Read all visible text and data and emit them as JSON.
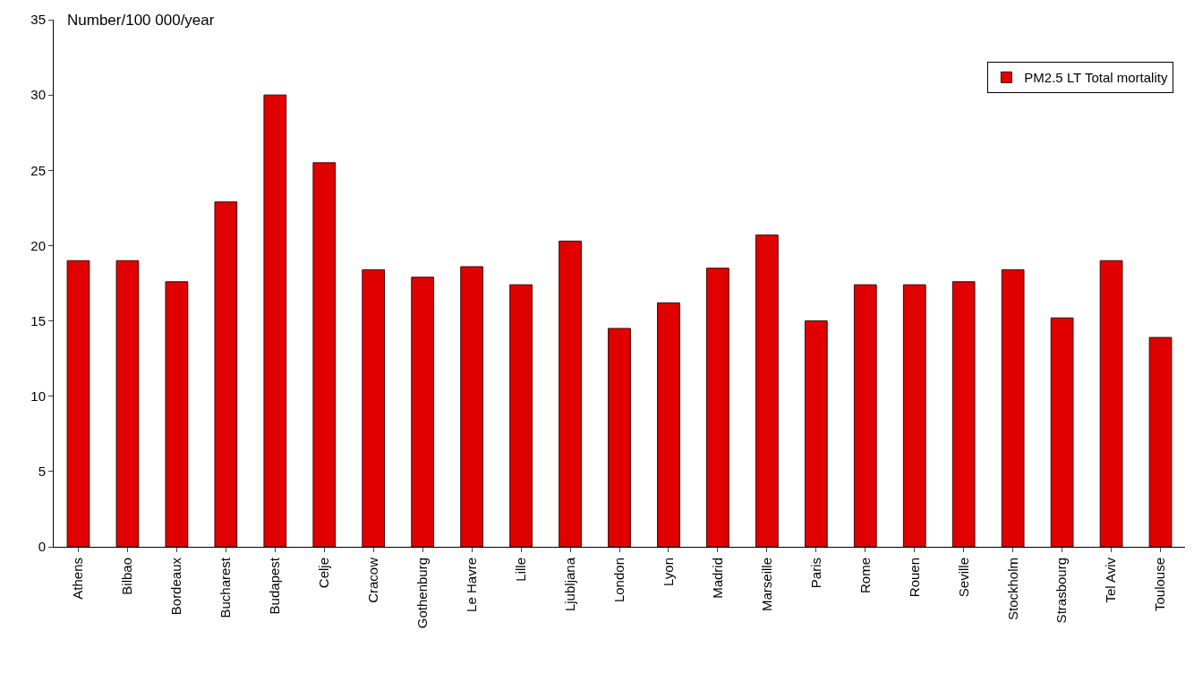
{
  "chart_data": {
    "type": "bar",
    "ylabel": "Number/100 000/year",
    "categories": [
      "Athens",
      "Bilbao",
      "Bordeaux",
      "Bucharest",
      "Budapest",
      "Celje",
      "Cracow",
      "Gothenburg",
      "Le Havre",
      "Lille",
      "Ljubljana",
      "London",
      "Lyon",
      "Madrid",
      "Marseille",
      "Paris",
      "Rome",
      "Rouen",
      "Seville",
      "Stockholm",
      "Strasbourg",
      "Tel Aviv",
      "Toulouse"
    ],
    "series": [
      {
        "name": "PM2.5 LT Total mortality",
        "color": "#e00000",
        "values": [
          19.0,
          19.0,
          17.6,
          22.9,
          30.0,
          25.5,
          18.4,
          17.9,
          18.6,
          17.4,
          20.3,
          14.5,
          16.2,
          18.5,
          20.7,
          15.0,
          17.4,
          17.4,
          17.6,
          18.4,
          15.2,
          19.0,
          13.9
        ]
      }
    ],
    "ylim": [
      0,
      35
    ],
    "yticks": [
      0,
      5,
      10,
      15,
      20,
      25,
      30,
      35
    ],
    "grid": false,
    "legend": "top right"
  }
}
